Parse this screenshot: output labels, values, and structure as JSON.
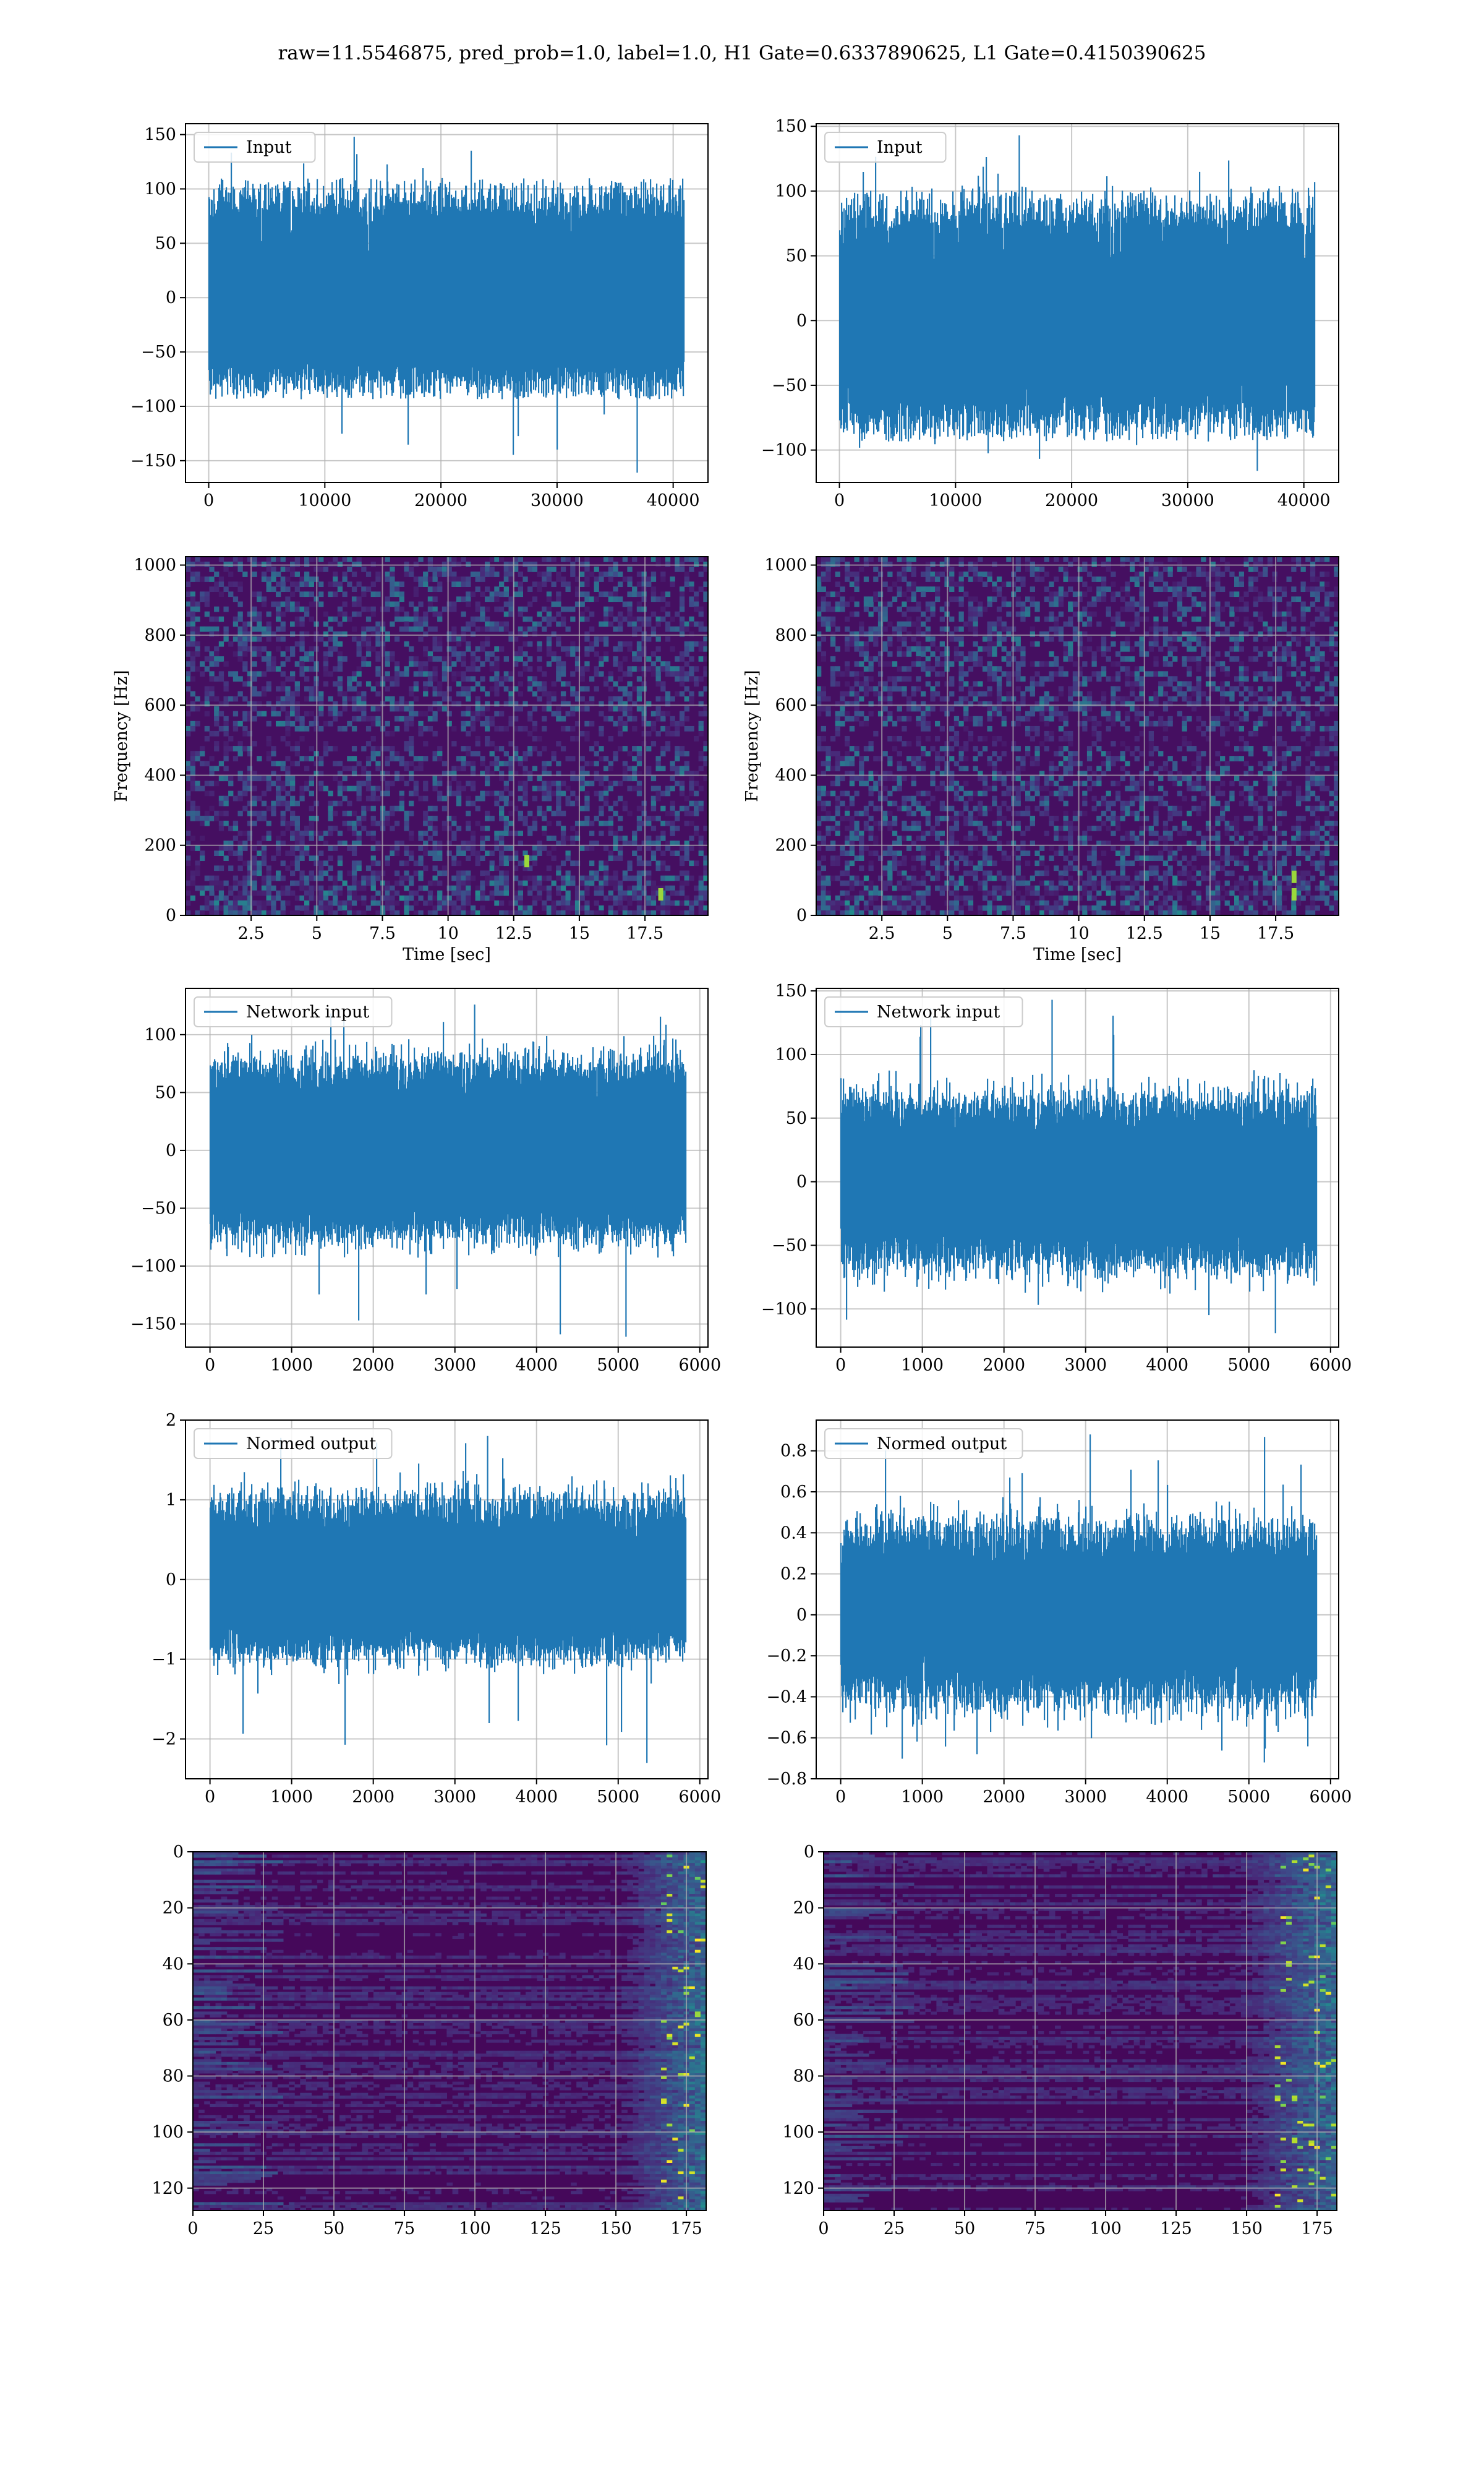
{
  "figure": {
    "title": "raw=11.5546875, pred_prob=1.0, label=1.0, H1 Gate=0.6337890625, L1 Gate=0.4150390625"
  },
  "colors": {
    "line": "#1f77b4",
    "grid": "#b0b0b0",
    "viridis_low": "#440154",
    "viridis_high": "#fde725"
  },
  "chart_data": [
    {
      "id": "h1-input",
      "type": "line",
      "legend": "Input",
      "xlim": [
        -2000,
        43000
      ],
      "ylim": [
        -170,
        160
      ],
      "xticks": [
        0,
        10000,
        20000,
        30000,
        40000
      ],
      "yticks": [
        -150,
        -100,
        -50,
        0,
        50,
        100,
        150
      ],
      "signal": {
        "n": 40960,
        "sd": 32,
        "max": 148,
        "min": -161,
        "upper": 100,
        "lower": -85
      },
      "xlabel": "",
      "ylabel": "",
      "grid": true,
      "legend_position": "upper left"
    },
    {
      "id": "l1-input",
      "type": "line",
      "legend": "Input",
      "xlim": [
        -2000,
        43000
      ],
      "ylim": [
        -125,
        152
      ],
      "xticks": [
        0,
        10000,
        20000,
        30000,
        40000
      ],
      "yticks": [
        -100,
        -50,
        0,
        50,
        100,
        150
      ],
      "signal": {
        "n": 40960,
        "sd": 28,
        "max": 143,
        "min": -116,
        "upper": 95,
        "lower": -85
      },
      "xlabel": "",
      "ylabel": "",
      "grid": true,
      "legend_position": "upper left"
    },
    {
      "id": "h1-spectrogram",
      "type": "heatmap",
      "colormap": "viridis",
      "xlim": [
        0,
        19.9
      ],
      "ylim": [
        0,
        1024
      ],
      "xticks": [
        2.5,
        5.0,
        7.5,
        10.0,
        12.5,
        15.0,
        17.5
      ],
      "yticks": [
        0,
        200,
        400,
        600,
        800,
        1000
      ],
      "xlabel": "Time [sec]",
      "ylabel": "Frequency [Hz]",
      "grid": true,
      "bright_spots": [
        [
          13.0,
          155
        ],
        [
          18.1,
          60
        ]
      ]
    },
    {
      "id": "l1-spectrogram",
      "type": "heatmap",
      "colormap": "viridis",
      "xlim": [
        0,
        19.9
      ],
      "ylim": [
        0,
        1024
      ],
      "xticks": [
        2.5,
        5.0,
        7.5,
        10.0,
        12.5,
        15.0,
        17.5
      ],
      "yticks": [
        0,
        200,
        400,
        600,
        800,
        1000
      ],
      "xlabel": "Time [sec]",
      "ylabel": "Frequency [Hz]",
      "grid": true,
      "bright_spots": [
        [
          18.2,
          110
        ],
        [
          18.2,
          60
        ]
      ]
    },
    {
      "id": "h1-network-input",
      "type": "line",
      "legend": "Network input",
      "xlim": [
        -300,
        6100
      ],
      "ylim": [
        -170,
        140
      ],
      "xticks": [
        0,
        1000,
        2000,
        3000,
        4000,
        5000,
        6000
      ],
      "yticks": [
        -150,
        -100,
        -50,
        0,
        50,
        100
      ],
      "signal": {
        "n": 5830,
        "sd": 32,
        "max": 126,
        "min": -161,
        "upper": 90,
        "lower": -85
      },
      "xlabel": "",
      "ylabel": "",
      "grid": true,
      "legend_position": "upper left"
    },
    {
      "id": "l1-network-input",
      "type": "line",
      "legend": "Network input",
      "xlim": [
        -300,
        6100
      ],
      "ylim": [
        -130,
        152
      ],
      "xticks": [
        0,
        1000,
        2000,
        3000,
        4000,
        5000,
        6000
      ],
      "yticks": [
        -100,
        -50,
        0,
        50,
        100,
        150
      ],
      "signal": {
        "n": 5830,
        "sd": 27,
        "max": 143,
        "min": -119,
        "upper": 80,
        "lower": -80
      },
      "xlabel": "",
      "ylabel": "",
      "grid": true,
      "legend_position": "upper left"
    },
    {
      "id": "h1-normed-output",
      "type": "line",
      "legend": "Normed output",
      "xlim": [
        -300,
        6100
      ],
      "ylim": [
        -2.5,
        2.0
      ],
      "xticks": [
        0,
        1000,
        2000,
        3000,
        4000,
        5000,
        6000
      ],
      "yticks": [
        -2,
        -1,
        0,
        1,
        2
      ],
      "signal": {
        "n": 5830,
        "sd": 0.4,
        "max": 1.8,
        "min": -2.3,
        "upper": 1.3,
        "lower": -1.1
      },
      "xlabel": "",
      "ylabel": "",
      "grid": true,
      "legend_position": "upper left"
    },
    {
      "id": "l1-normed-output",
      "type": "line",
      "legend": "Normed output",
      "xlim": [
        -300,
        6100
      ],
      "ylim": [
        -0.8,
        0.95
      ],
      "xticks": [
        0,
        1000,
        2000,
        3000,
        4000,
        5000,
        6000
      ],
      "yticks": [
        -0.8,
        -0.6,
        -0.4,
        -0.2,
        0.0,
        0.2,
        0.4,
        0.6,
        0.8
      ],
      "signal": {
        "n": 5830,
        "sd": 0.17,
        "max": 0.88,
        "min": -0.72,
        "upper": 0.55,
        "lower": -0.6
      },
      "xlabel": "",
      "ylabel": "",
      "grid": true,
      "legend_position": "upper left"
    },
    {
      "id": "h1-feature-map",
      "type": "heatmap",
      "colormap": "viridis",
      "xlim": [
        0,
        182
      ],
      "ylim": [
        128,
        0
      ],
      "xticks": [
        0,
        25,
        50,
        75,
        100,
        125,
        150,
        175
      ],
      "yticks": [
        0,
        20,
        40,
        60,
        80,
        100,
        120
      ],
      "xlabel": "",
      "ylabel": "",
      "grid": true,
      "bright_band": [
        150,
        182
      ]
    },
    {
      "id": "l1-feature-map",
      "type": "heatmap",
      "colormap": "viridis",
      "xlim": [
        0,
        182
      ],
      "ylim": [
        128,
        0
      ],
      "xticks": [
        0,
        25,
        50,
        75,
        100,
        125,
        150,
        175
      ],
      "yticks": [
        0,
        20,
        40,
        60,
        80,
        100,
        120
      ],
      "xlabel": "",
      "ylabel": "",
      "grid": true,
      "bright_band": [
        145,
        182
      ]
    }
  ]
}
